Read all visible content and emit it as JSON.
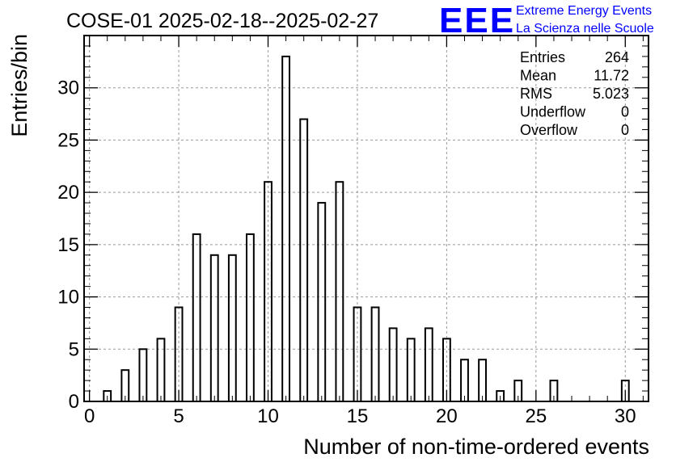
{
  "chart_data": {
    "type": "bar",
    "title": "COSE-01 2025-02-18--2025-02-27",
    "xlabel": "Number of non-time-ordered events",
    "ylabel": "Entries/bin",
    "xlim": [
      -0.3,
      31.3
    ],
    "ylim": [
      0,
      35
    ],
    "grid": true,
    "bin_width": 1,
    "x": [
      1,
      2,
      3,
      4,
      5,
      6,
      7,
      8,
      9,
      10,
      11,
      12,
      13,
      14,
      15,
      16,
      17,
      18,
      19,
      20,
      21,
      22,
      23,
      24,
      26,
      30
    ],
    "values": [
      1,
      3,
      5,
      6,
      9,
      16,
      14,
      14,
      16,
      21,
      33,
      27,
      19,
      21,
      9,
      9,
      7,
      6,
      7,
      6,
      4,
      4,
      1,
      2,
      2,
      2
    ],
    "x_tick_labels": [
      "0",
      "5",
      "10",
      "15",
      "20",
      "25",
      "30"
    ],
    "y_tick_labels": [
      "0",
      "5",
      "10",
      "15",
      "20",
      "25",
      "30"
    ],
    "stats": [
      {
        "label": "Entries",
        "value": "264"
      },
      {
        "label": "Mean",
        "value": "11.72"
      },
      {
        "label": "RMS",
        "value": "5.023"
      },
      {
        "label": "Underflow",
        "value": "0"
      },
      {
        "label": "Overflow",
        "value": "0"
      }
    ]
  },
  "logo": {
    "mark": "EEE",
    "line1": "Extreme Energy Events",
    "line2": "La Scienza nelle Scuole",
    "color": "#0000ff"
  }
}
